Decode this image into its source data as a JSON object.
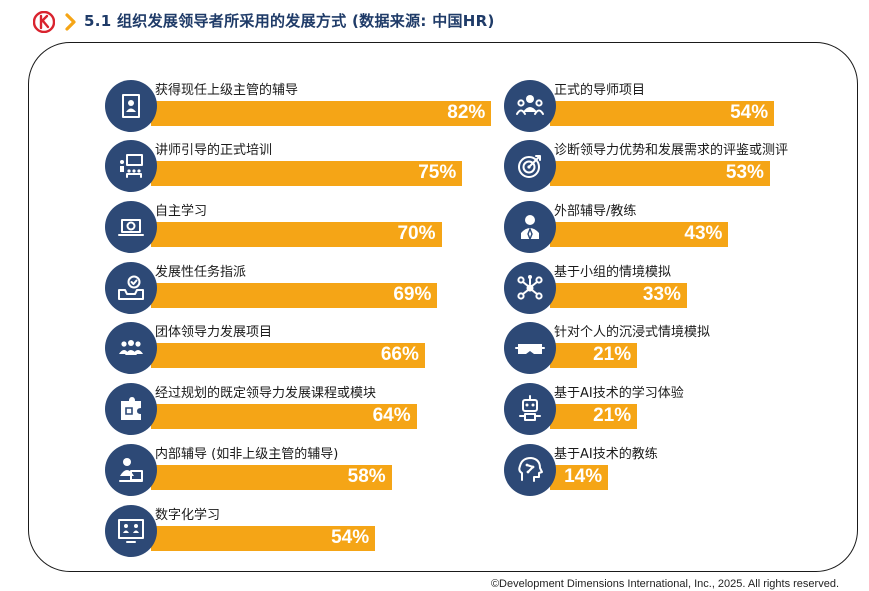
{
  "header": {
    "title": "5.1 组织发展领导者所采用的发展方式 (数据来源: 中国HR)"
  },
  "colors": {
    "bar": "#f5a516",
    "icon_bg": "#2d4976",
    "title": "#1f3b68",
    "logo": "#d9232e"
  },
  "chart_data": {
    "type": "bar",
    "orientation": "horizontal",
    "unit": "%",
    "xlim": [
      0,
      100
    ],
    "columns": [
      {
        "items": [
          {
            "label": "获得现任上级主管的辅导",
            "value": 82,
            "value_label": "82%",
            "icon": "notebook-person-icon"
          },
          {
            "label": "讲师引导的正式培训",
            "value": 75,
            "value_label": "75%",
            "icon": "classroom-icon"
          },
          {
            "label": "自主学习",
            "value": 70,
            "value_label": "70%",
            "icon": "laptop-icon"
          },
          {
            "label": "发展性任务指派",
            "value": 69,
            "value_label": "69%",
            "icon": "tray-check-icon"
          },
          {
            "label": "团体领导力发展项目",
            "value": 66,
            "value_label": "66%",
            "icon": "group-icon"
          },
          {
            "label": "经过规划的既定领导力发展课程或模块",
            "value": 64,
            "value_label": "64%",
            "icon": "puzzle-icon"
          },
          {
            "label": "内部辅导 (如非上级主管的辅导)",
            "value": 58,
            "value_label": "58%",
            "icon": "mentor-icon"
          },
          {
            "label": "数字化学习",
            "value": 54,
            "value_label": "54%",
            "icon": "video-call-icon"
          }
        ]
      },
      {
        "items": [
          {
            "label": "正式的导师项目",
            "value": 54,
            "value_label": "54%",
            "icon": "mentor-group-icon"
          },
          {
            "label": "诊断领导力优势和发展需求的评鉴或测评",
            "value": 53,
            "value_label": "53%",
            "icon": "target-icon"
          },
          {
            "label": "外部辅导/教练",
            "value": 43,
            "value_label": "43%",
            "icon": "coach-person-icon"
          },
          {
            "label": "基于小组的情境模拟",
            "value": 33,
            "value_label": "33%",
            "icon": "network-icon"
          },
          {
            "label": "针对个人的沉浸式情境模拟",
            "value": 21,
            "value_label": "21%",
            "icon": "vr-headset-icon"
          },
          {
            "label": "基于AI技术的学习体验",
            "value": 21,
            "value_label": "21%",
            "icon": "robot-icon"
          },
          {
            "label": "基于AI技术的教练",
            "value": 14,
            "value_label": "14%",
            "icon": "ai-head-icon"
          }
        ]
      }
    ]
  },
  "footer": {
    "copyright": "©Development Dimensions International, Inc., 2025. All rights reserved."
  }
}
